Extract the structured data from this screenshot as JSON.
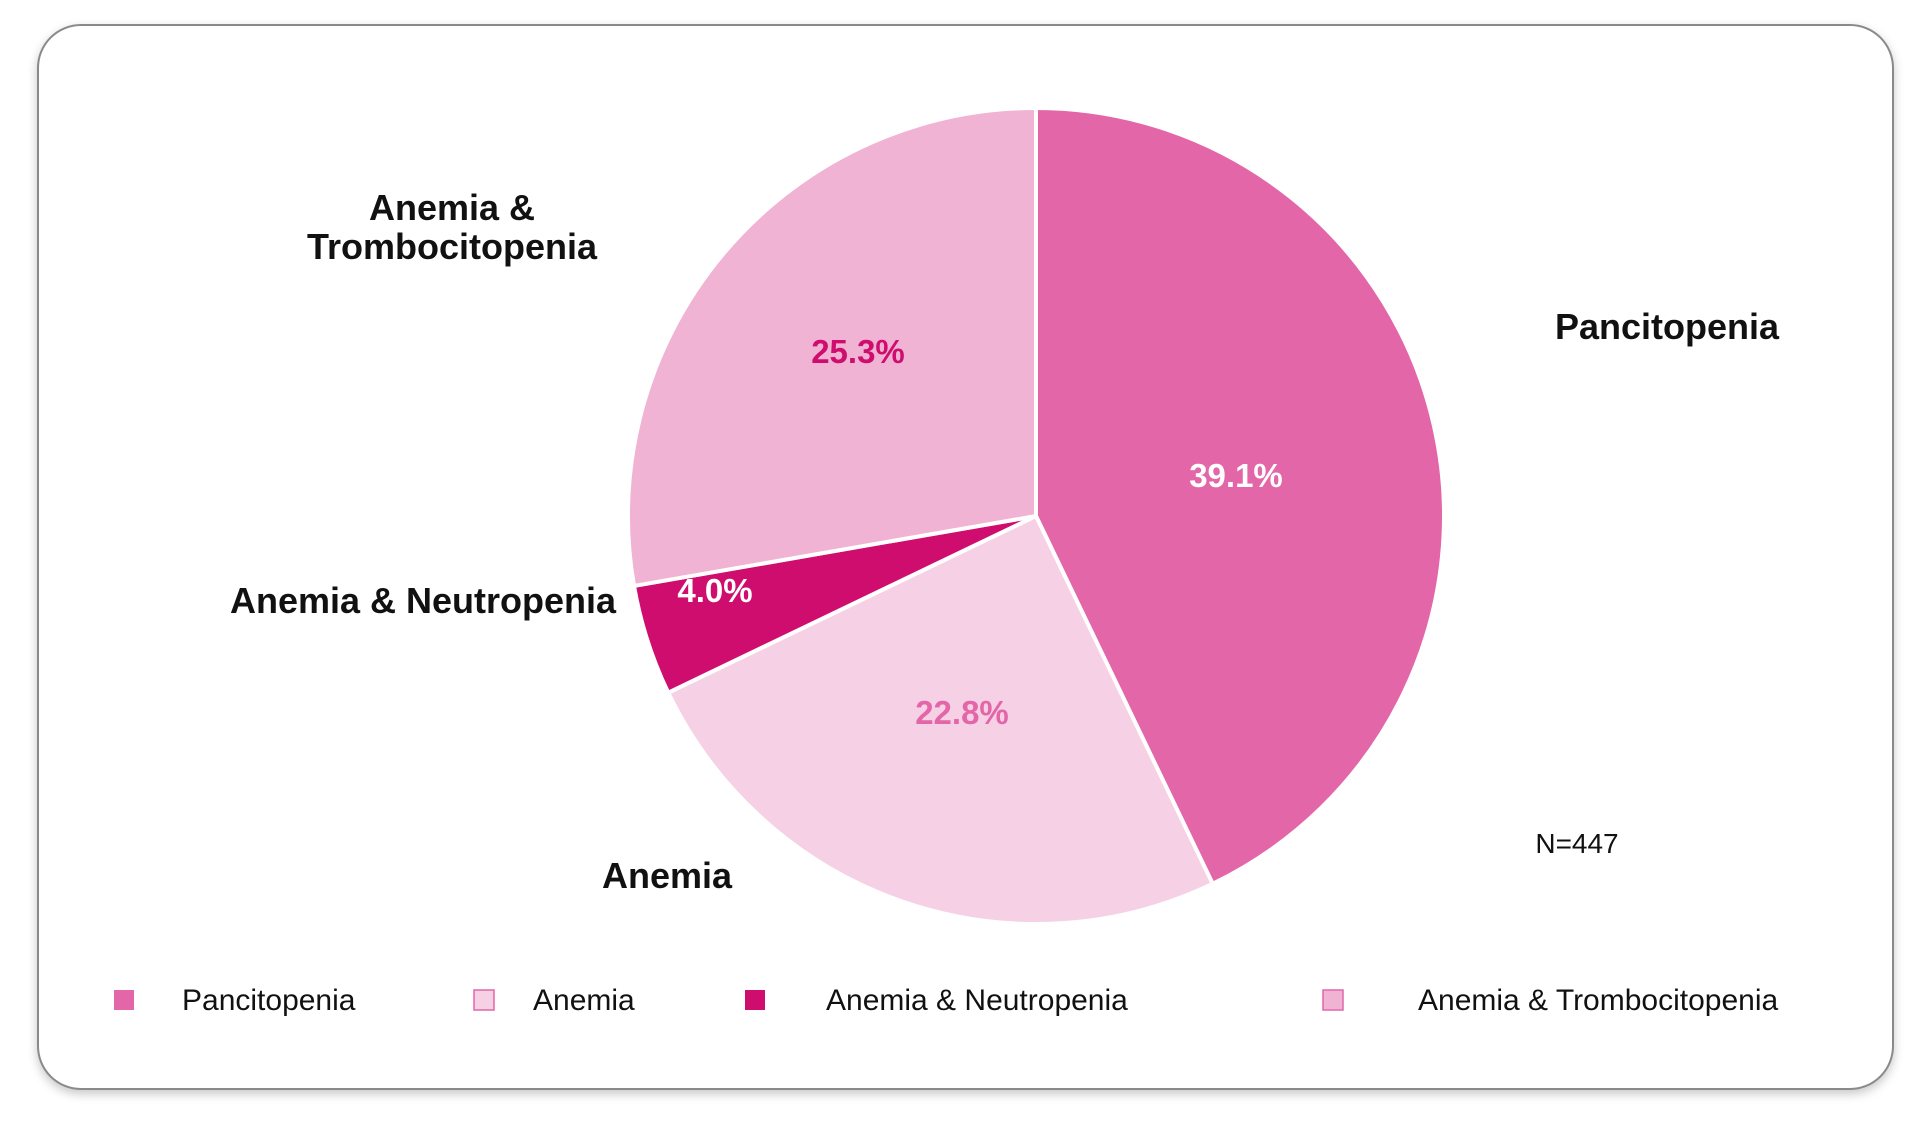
{
  "chart_data": {
    "type": "pie",
    "categories": [
      "Pancitopenia",
      "Anemia",
      "Anemia & Neutropenia",
      "Anemia & Trombocitopenia"
    ],
    "values": [
      39.1,
      22.8,
      4.0,
      25.3
    ],
    "value_labels": [
      "39.1%",
      "22.8%",
      "4.0%",
      "25.3%"
    ],
    "callouts": [
      [
        "Pancitopenia"
      ],
      [
        "Anemia"
      ],
      [
        "Anemia & Neutropenia"
      ],
      [
        "Anemia &",
        "Trombocitopenia"
      ]
    ],
    "colors": [
      "#e366a8",
      "#f6d0e4",
      "#cf0d6e",
      "#f0b3d3"
    ],
    "label_colors": [
      "#ffffff",
      "#e366a8",
      "#ffffff",
      "#cf0d6e"
    ],
    "legend_placement": "bottom",
    "note": "N=447"
  }
}
